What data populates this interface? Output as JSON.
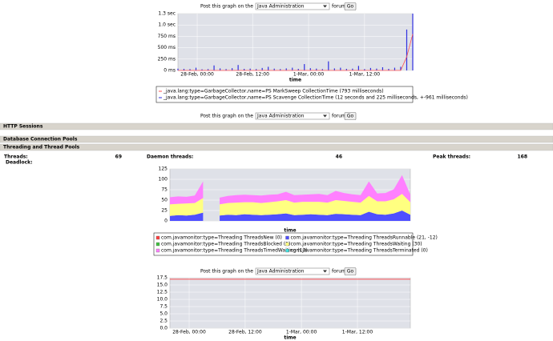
{
  "post_forms": [
    {
      "label_before": "Post this graph on the",
      "select": "Java Administration",
      "label_after": "forum",
      "button": "Go"
    },
    {
      "label_before": "Post this graph on the",
      "select": "Java Administration",
      "label_after": "forum",
      "button": "Go"
    },
    {
      "label_before": "Post this graph on the",
      "select": "Java Administration",
      "label_after": "forum",
      "button": "Go"
    }
  ],
  "sections": [
    "HTTP Sessions",
    "Database Connection Pools",
    "Threading and Thread Pools"
  ],
  "threads": {
    "threads_label": "Threads:",
    "threads": 69,
    "daemon_label": "Daemon threads:",
    "daemon": 46,
    "peak_label": "Peak threads:",
    "peak": 168,
    "deadlock_label": "Deadlock:"
  },
  "charts": [
    {
      "type": "bar",
      "xlabel": "time",
      "xlim": [
        0,
        39
      ],
      "ylim": [
        0,
        1250
      ],
      "yticks": [
        {
          "value": 0,
          "label": "0 ms"
        },
        {
          "value": 250,
          "label": "250 ms"
        },
        {
          "value": 500,
          "label": "500 ms"
        },
        {
          "value": 750,
          "label": "750 ms"
        },
        {
          "value": 1000,
          "label": "1.0 sec"
        },
        {
          "value": 1250,
          "label": "1.3 sec"
        }
      ],
      "xticks": [
        {
          "value": 3.2,
          "label": "28-Feb, 00:00"
        },
        {
          "value": 12.4,
          "label": "28-Feb, 12:00"
        },
        {
          "value": 21.7,
          "label": "1-Mar, 00:00"
        },
        {
          "value": 31.0,
          "label": "1-Mar, 12:00"
        }
      ],
      "series": [
        {
          "name": "_java.lang:type=GarbageCollector,name=PS MarkSweep CollectionTime (793 milliseconds)",
          "color": "#ff5050",
          "kind": "line",
          "values": [
            0,
            0,
            0,
            0,
            0,
            0,
            0,
            0,
            0,
            0,
            0,
            0,
            0,
            0,
            0,
            0,
            0,
            0,
            0,
            0,
            0,
            0,
            0,
            0,
            0,
            0,
            0,
            0,
            0,
            0,
            0,
            0,
            0,
            0,
            0,
            0,
            0,
            0,
            300,
            800
          ]
        },
        {
          "name": "_java.lang:type=GarbageCollector,name=PS Scavenge CollectionTime (12 seconds and 225 milliseconds, +-961 milliseconds)",
          "color": "#3030e0",
          "kind": "bar",
          "values": [
            40,
            35,
            30,
            60,
            25,
            30,
            110,
            45,
            30,
            50,
            120,
            35,
            40,
            30,
            55,
            80,
            40,
            30,
            45,
            60,
            35,
            140,
            50,
            40,
            30,
            200,
            45,
            60,
            35,
            40,
            100,
            30,
            55,
            40,
            70,
            35,
            60,
            80,
            900,
            1250
          ]
        }
      ]
    },
    {
      "type": "area",
      "stacked": true,
      "xlabel": "time",
      "xlim": [
        0,
        29
      ],
      "ylim": [
        0,
        125
      ],
      "yticks": [
        0,
        25,
        50,
        75,
        100,
        125
      ],
      "series": [
        {
          "name": "com.javamonitor:type=Threading ThreadsNew (0)",
          "color": "#ff4040",
          "values": [
            0,
            0,
            0,
            0,
            0,
            null,
            0,
            0,
            0,
            0,
            0,
            0,
            0,
            0,
            0,
            0,
            0,
            0,
            0,
            0,
            0,
            0,
            0,
            0,
            0,
            0,
            0,
            0,
            0,
            0
          ]
        },
        {
          "name": "com.javamonitor:type=Threading ThreadsRunnable (21, -12)",
          "color": "#5050ff",
          "values": [
            12,
            14,
            13,
            15,
            20,
            null,
            13,
            15,
            14,
            16,
            15,
            14,
            15,
            16,
            18,
            14,
            15,
            16,
            15,
            14,
            17,
            16,
            15,
            14,
            22,
            16,
            15,
            18,
            25,
            15
          ]
        },
        {
          "name": "com.javamonitor:type=Threading ThreadsBlocked (1)",
          "color": "#40c040",
          "values": [
            0,
            0,
            0,
            0,
            0,
            null,
            0,
            0,
            0,
            0,
            0,
            0,
            0,
            0,
            0,
            0,
            0,
            0,
            0,
            0,
            0,
            0,
            0,
            0,
            0,
            0,
            0,
            0,
            0,
            0
          ]
        },
        {
          "name": "com.javamonitor:type=Threading ThreadsWaiting (30)",
          "color": "#ffff80",
          "values": [
            28,
            27,
            29,
            28,
            35,
            null,
            27,
            28,
            30,
            29,
            30,
            29,
            30,
            31,
            32,
            30,
            31,
            30,
            31,
            30,
            33,
            32,
            31,
            30,
            38,
            31,
            32,
            34,
            40,
            30
          ]
        },
        {
          "name": "com.javamonitor:type=Threading ThreadsTimedWaiting (17)",
          "color": "#ff80ff",
          "values": [
            17,
            18,
            16,
            18,
            40,
            null,
            16,
            17,
            18,
            18,
            17,
            18,
            18,
            17,
            20,
            18,
            17,
            18,
            19,
            18,
            22,
            19,
            18,
            18,
            35,
            19,
            20,
            24,
            45,
            18
          ]
        },
        {
          "name": "com.javamonitor:type=Threading ThreadsTerminated (0)",
          "color": "#40e0e0",
          "values": [
            0,
            0,
            0,
            0,
            0,
            null,
            0,
            0,
            0,
            0,
            0,
            0,
            0,
            0,
            0,
            0,
            0,
            0,
            0,
            0,
            0,
            0,
            0,
            0,
            0,
            0,
            0,
            0,
            0,
            0
          ]
        }
      ]
    },
    {
      "type": "line",
      "xlim": [
        0,
        1
      ],
      "ylim": [
        0,
        17.5
      ],
      "xlabel": "time",
      "yticks": [
        {
          "value": 0,
          "label": "0.0"
        },
        2.5,
        {
          "value": 5,
          "label": "5.0"
        },
        7.5,
        {
          "value": 10,
          "label": "10.0"
        },
        12.5,
        {
          "value": 15,
          "label": "15.0"
        },
        17.5
      ],
      "xticks": [
        {
          "value": 0.08,
          "label": "28-Feb, 00:00"
        },
        {
          "value": 0.313,
          "label": "28-Feb, 12:00"
        },
        {
          "value": 0.547,
          "label": "1-Mar, 00:00"
        },
        {
          "value": 0.78,
          "label": "1-Mar, 12:00"
        }
      ],
      "series": [
        {
          "color": "#ff4040",
          "values": [
            17,
            17
          ]
        }
      ]
    }
  ]
}
